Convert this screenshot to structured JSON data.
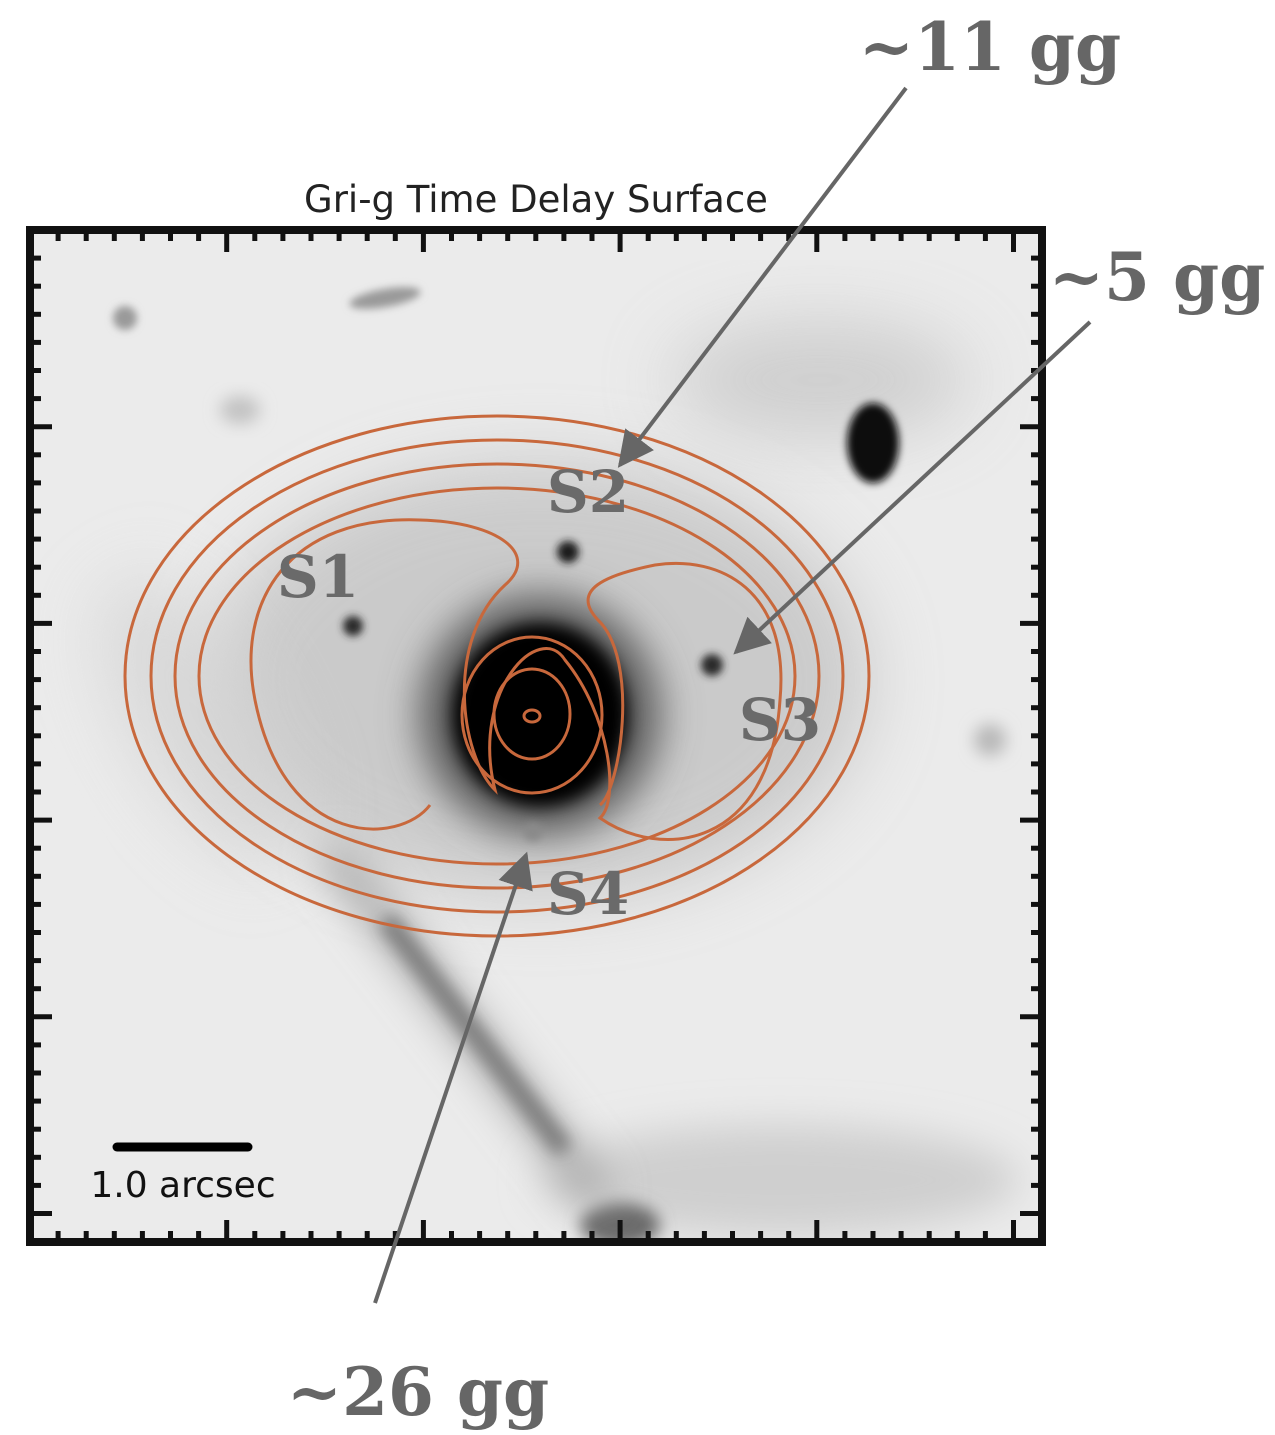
{
  "figure": {
    "title": "Gri-g Time Delay Surface",
    "scale_bar_label": "1.0 arcsec"
  },
  "images": [
    {
      "id": "S1",
      "label": "S1"
    },
    {
      "id": "S2",
      "label": "S2",
      "delay_label": "~11 gg"
    },
    {
      "id": "S3",
      "label": "S3",
      "delay_label": "~5 gg"
    },
    {
      "id": "S4",
      "label": "S4",
      "delay_label": "~26 gg"
    }
  ],
  "colors": {
    "contour": "#c8683c",
    "annotation": "#666666",
    "frame": "#111111"
  }
}
